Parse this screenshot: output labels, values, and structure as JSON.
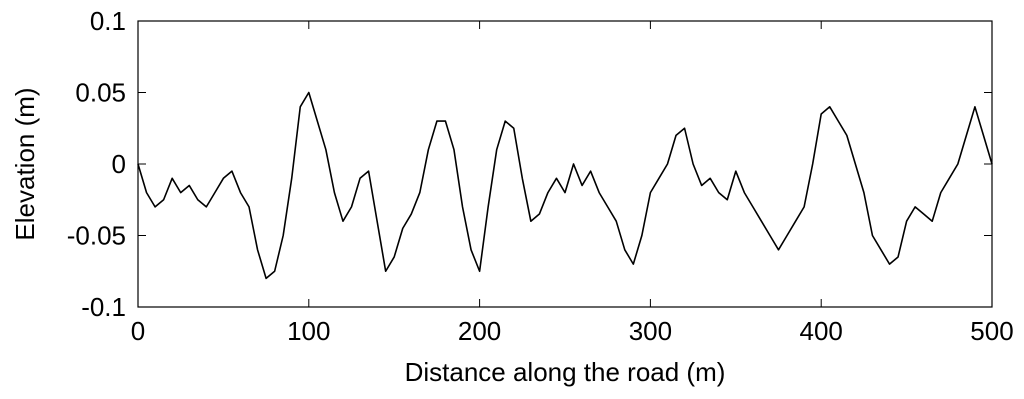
{
  "chart_data": {
    "type": "line",
    "title": "",
    "xlabel": "Distance along the road (m)",
    "ylabel": "Elevation (m)",
    "xlim": [
      0,
      500
    ],
    "ylim": [
      -0.1,
      0.1
    ],
    "x_ticks": [
      0,
      100,
      200,
      300,
      400,
      500
    ],
    "x_tick_labels": [
      "0",
      "100",
      "200",
      "300",
      "400",
      "500"
    ],
    "y_ticks": [
      -0.1,
      -0.05,
      0,
      0.05,
      0.1
    ],
    "y_tick_labels": [
      "-0.1",
      "-0.05",
      "0",
      "0.05",
      "0.1"
    ],
    "grid": false,
    "line_color": "#000000",
    "series": [
      {
        "x": [
          0,
          5,
          10,
          15,
          20,
          25,
          30,
          35,
          40,
          45,
          50,
          55,
          60,
          65,
          70,
          75,
          80,
          85,
          90,
          95,
          100,
          105,
          110,
          115,
          120,
          125,
          130,
          135,
          140,
          145,
          150,
          155,
          160,
          165,
          170,
          175,
          180,
          185,
          190,
          195,
          200,
          205,
          210,
          215,
          220,
          225,
          230,
          235,
          240,
          245,
          250,
          255,
          260,
          265,
          270,
          275,
          280,
          285,
          290,
          295,
          300,
          305,
          310,
          315,
          320,
          325,
          330,
          335,
          340,
          345,
          350,
          355,
          360,
          365,
          370,
          375,
          380,
          385,
          390,
          395,
          400,
          405,
          410,
          415,
          420,
          425,
          430,
          435,
          440,
          445,
          450,
          455,
          460,
          465,
          470,
          475,
          480,
          485,
          490,
          495,
          500
        ],
        "values": [
          0.0,
          -0.02,
          -0.03,
          -0.025,
          -0.01,
          -0.02,
          -0.015,
          -0.025,
          -0.03,
          -0.02,
          -0.01,
          -0.005,
          -0.02,
          -0.03,
          -0.06,
          -0.08,
          -0.075,
          -0.05,
          -0.01,
          0.04,
          0.05,
          0.03,
          0.01,
          -0.02,
          -0.04,
          -0.03,
          -0.01,
          -0.005,
          -0.04,
          -0.075,
          -0.065,
          -0.045,
          -0.035,
          -0.02,
          0.01,
          0.03,
          0.03,
          0.01,
          -0.03,
          -0.06,
          -0.075,
          -0.03,
          0.01,
          0.03,
          0.025,
          -0.01,
          -0.04,
          -0.035,
          -0.02,
          -0.01,
          -0.02,
          0.0,
          -0.015,
          -0.005,
          -0.02,
          -0.03,
          -0.04,
          -0.06,
          -0.07,
          -0.05,
          -0.02,
          -0.01,
          0.0,
          0.02,
          0.025,
          0.0,
          -0.015,
          -0.01,
          -0.02,
          -0.025,
          -0.005,
          -0.02,
          -0.03,
          -0.04,
          -0.05,
          -0.06,
          -0.05,
          -0.04,
          -0.03,
          0.0,
          0.035,
          0.04,
          0.03,
          0.02,
          0.0,
          -0.02,
          -0.05,
          -0.06,
          -0.07,
          -0.065,
          -0.04,
          -0.03,
          -0.035,
          -0.04,
          -0.02,
          -0.01,
          0.0,
          0.02,
          0.04,
          0.02,
          0.0
        ]
      }
    ]
  }
}
